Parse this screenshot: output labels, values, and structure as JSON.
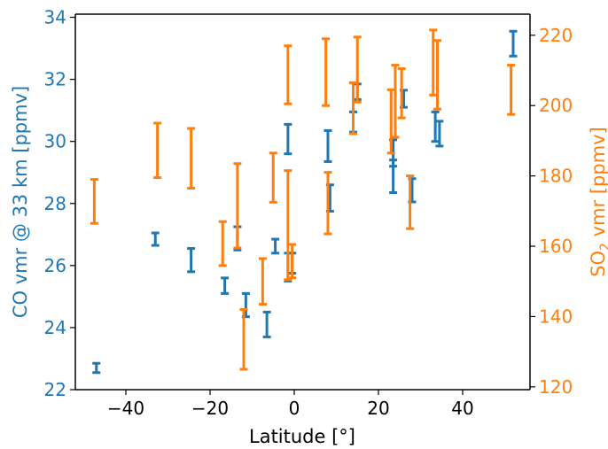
{
  "chart_data": {
    "type": "scatter",
    "xlabel": "Latitude [°]",
    "ylabel_left": "CO vmr @ 33 km [ppmv]",
    "ylabel_right_prefix": "SO",
    "ylabel_right_sub": "2",
    "ylabel_right_suffix": " vmr [ppmv]",
    "xlim": [
      -52,
      56
    ],
    "ylim_left": [
      22,
      34.1
    ],
    "ylim_right": [
      119.2,
      226
    ],
    "x_ticks": [
      -40,
      -20,
      0,
      20,
      40
    ],
    "x_tick_labels": [
      "−40",
      "−20",
      "0",
      "20",
      "40"
    ],
    "y_left_ticks": [
      22,
      24,
      26,
      28,
      30,
      32,
      34
    ],
    "y_left_tick_labels": [
      "22",
      "24",
      "26",
      "28",
      "30",
      "32",
      "34"
    ],
    "y_right_ticks": [
      120,
      140,
      160,
      180,
      200,
      220
    ],
    "y_right_tick_labels": [
      "120",
      "140",
      "160",
      "180",
      "200",
      "220"
    ],
    "colors": {
      "co": "#1f77b4",
      "so2": "#ff7f0e",
      "axis": "#000000"
    },
    "series": [
      {
        "axis": "left",
        "color": "#1f77b4",
        "points": [
          {
            "x": -47,
            "low": 22.55,
            "high": 22.85
          },
          {
            "x": -33,
            "low": 26.65,
            "high": 27.05
          },
          {
            "x": -24.5,
            "low": 25.8,
            "high": 26.55
          },
          {
            "x": -16.5,
            "low": 25.1,
            "high": 25.6
          },
          {
            "x": -13.5,
            "low": 26.5,
            "high": 27.25
          },
          {
            "x": -11.5,
            "low": 24.35,
            "high": 25.1
          },
          {
            "x": -6.5,
            "low": 23.7,
            "high": 24.5
          },
          {
            "x": -4.5,
            "low": 26.4,
            "high": 26.85
          },
          {
            "x": -1.5,
            "low": 29.6,
            "high": 30.55
          },
          {
            "x": -1.5,
            "low": 25.5,
            "high": 26.4
          },
          {
            "x": -0.5,
            "low": 25.75,
            "high": 26.4
          },
          {
            "x": 8,
            "low": 29.35,
            "high": 30.35
          },
          {
            "x": 8.5,
            "low": 27.75,
            "high": 28.6
          },
          {
            "x": 14,
            "low": 30.3,
            "high": 30.95
          },
          {
            "x": 15,
            "low": 31.35,
            "high": 31.85
          },
          {
            "x": 23.5,
            "low": 29.2,
            "high": 30.05
          },
          {
            "x": 23.5,
            "low": 28.35,
            "high": 29.4
          },
          {
            "x": 26,
            "low": 31.1,
            "high": 31.65
          },
          {
            "x": 28,
            "low": 28.05,
            "high": 28.8
          },
          {
            "x": 33.5,
            "low": 30,
            "high": 30.95
          },
          {
            "x": 34.5,
            "low": 29.85,
            "high": 30.65
          },
          {
            "x": 52,
            "low": 32.75,
            "high": 33.55
          }
        ]
      },
      {
        "axis": "right",
        "color": "#ff7f0e",
        "points": [
          {
            "x": -47.5,
            "low": 166.5,
            "high": 179
          },
          {
            "x": -32.5,
            "low": 179.5,
            "high": 195
          },
          {
            "x": -24.5,
            "low": 176.5,
            "high": 193.5
          },
          {
            "x": -17,
            "low": 154.5,
            "high": 167
          },
          {
            "x": -13.5,
            "low": 159.5,
            "high": 183.5
          },
          {
            "x": -12,
            "low": 125,
            "high": 142
          },
          {
            "x": -7.5,
            "low": 143.5,
            "high": 156.5
          },
          {
            "x": -5,
            "low": 172.5,
            "high": 186.5
          },
          {
            "x": -1.5,
            "low": 150.5,
            "high": 181.5
          },
          {
            "x": -1.5,
            "low": 200.5,
            "high": 217
          },
          {
            "x": -0.5,
            "low": 151,
            "high": 160.5
          },
          {
            "x": 7.5,
            "low": 200,
            "high": 219
          },
          {
            "x": 8,
            "low": 163.5,
            "high": 181
          },
          {
            "x": 14,
            "low": 192,
            "high": 206.5
          },
          {
            "x": 15,
            "low": 201,
            "high": 219.5
          },
          {
            "x": 23,
            "low": 186.5,
            "high": 204.5
          },
          {
            "x": 24,
            "low": 191,
            "high": 211.5
          },
          {
            "x": 25.5,
            "low": 196.5,
            "high": 210.5
          },
          {
            "x": 27.5,
            "low": 165,
            "high": 180
          },
          {
            "x": 33,
            "low": 203,
            "high": 221.5
          },
          {
            "x": 34,
            "low": 199,
            "high": 218.5
          },
          {
            "x": 51.5,
            "low": 197.5,
            "high": 211.5
          }
        ]
      }
    ]
  }
}
